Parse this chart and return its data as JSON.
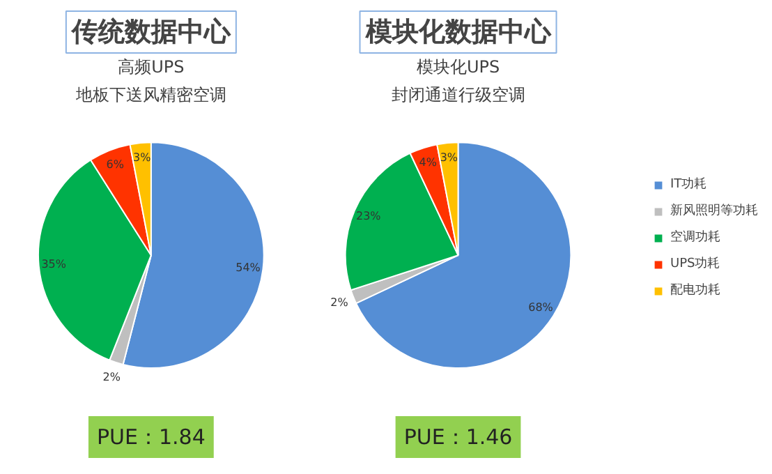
{
  "chart_data": [
    {
      "type": "pie",
      "title": "传统数据中心",
      "subtitle": "高频UPS\n地板下送风精密空调",
      "categories": [
        "IT功耗",
        "新风照明等功耗",
        "空调功耗",
        "UPS功耗",
        "配电功耗"
      ],
      "values": [
        54,
        2,
        35,
        6,
        3
      ],
      "colors": [
        "#558ed5",
        "#bfbfbf",
        "#00b050",
        "#ff3300",
        "#ffc000"
      ],
      "value_labels": [
        "54%",
        "2%",
        "35%",
        "6%",
        "3%"
      ],
      "annotations": [
        "PUE：1.84"
      ],
      "legend": "right"
    },
    {
      "type": "pie",
      "title": "模块化数据中心",
      "subtitle": "模块化UPS\n封闭通道行级空调",
      "categories": [
        null,
        null,
        null,
        null,
        null
      ],
      "values": [
        68,
        2,
        23,
        4,
        3
      ],
      "colors": [
        "#558ed5",
        "#bfbfbf",
        "#00b050",
        "#ff3300",
        "#ffc000"
      ],
      "value_labels": [
        "68%",
        "2%",
        "23%",
        "4%",
        "3%"
      ],
      "annotations": [
        "PUE：1.46"
      ]
    }
  ]
}
